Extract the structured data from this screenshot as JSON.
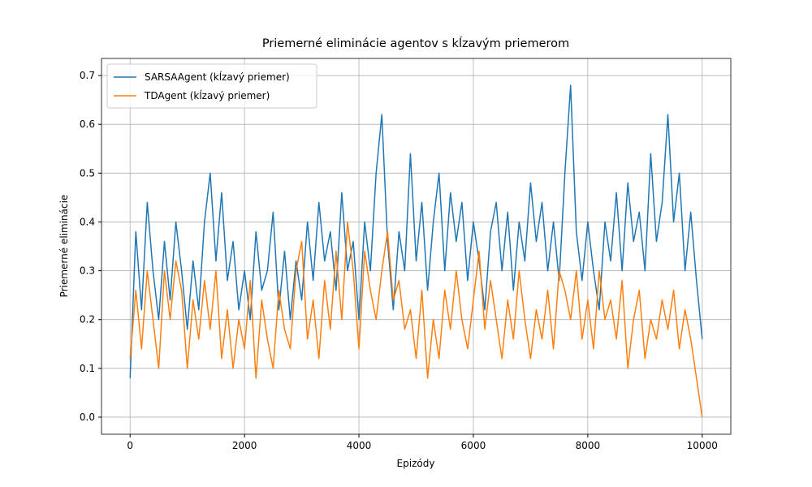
{
  "chart_data": {
    "type": "line",
    "title": "Priemerné eliminácie agentov s kĺzavým priemerom",
    "x_label": "Epizódy",
    "y_label": "Priemerné eliminácie",
    "x": [
      0,
      100,
      200,
      300,
      400,
      500,
      600,
      700,
      800,
      900,
      1000,
      1100,
      1200,
      1300,
      1400,
      1500,
      1600,
      1700,
      1800,
      1900,
      2000,
      2100,
      2200,
      2300,
      2400,
      2500,
      2600,
      2700,
      2800,
      2900,
      3000,
      3100,
      3200,
      3300,
      3400,
      3500,
      3600,
      3700,
      3800,
      3900,
      4000,
      4100,
      4200,
      4300,
      4400,
      4500,
      4600,
      4700,
      4800,
      4900,
      5000,
      5100,
      5200,
      5300,
      5400,
      5500,
      5600,
      5700,
      5800,
      5900,
      6000,
      6100,
      6200,
      6300,
      6400,
      6500,
      6600,
      6700,
      6800,
      6900,
      7000,
      7100,
      7200,
      7300,
      7400,
      7500,
      7600,
      7700,
      7800,
      7900,
      8000,
      8100,
      8200,
      8300,
      8400,
      8500,
      8600,
      8700,
      8800,
      8900,
      9000,
      9100,
      9200,
      9300,
      9400,
      9500,
      9600,
      9700,
      9800,
      9900,
      10000
    ],
    "series": [
      {
        "name": "SARSAAgent (kĺzavý priemer)",
        "color": "#1f77b4",
        "values": [
          0.08,
          0.38,
          0.22,
          0.44,
          0.3,
          0.2,
          0.36,
          0.24,
          0.4,
          0.3,
          0.18,
          0.32,
          0.22,
          0.4,
          0.5,
          0.32,
          0.46,
          0.28,
          0.36,
          0.22,
          0.3,
          0.2,
          0.38,
          0.26,
          0.3,
          0.42,
          0.22,
          0.34,
          0.2,
          0.32,
          0.24,
          0.4,
          0.28,
          0.44,
          0.32,
          0.38,
          0.26,
          0.46,
          0.3,
          0.36,
          0.2,
          0.4,
          0.3,
          0.5,
          0.62,
          0.36,
          0.22,
          0.38,
          0.3,
          0.54,
          0.32,
          0.44,
          0.26,
          0.4,
          0.5,
          0.3,
          0.46,
          0.36,
          0.44,
          0.28,
          0.4,
          0.32,
          0.22,
          0.38,
          0.44,
          0.3,
          0.42,
          0.26,
          0.4,
          0.32,
          0.48,
          0.36,
          0.44,
          0.3,
          0.4,
          0.28,
          0.5,
          0.68,
          0.38,
          0.28,
          0.4,
          0.3,
          0.22,
          0.4,
          0.32,
          0.46,
          0.3,
          0.48,
          0.36,
          0.42,
          0.3,
          0.54,
          0.36,
          0.44,
          0.62,
          0.4,
          0.5,
          0.3,
          0.42,
          0.28,
          0.16
        ]
      },
      {
        "name": "TDAgent (kĺzavý priemer)",
        "color": "#ff7f0e",
        "values": [
          0.12,
          0.26,
          0.14,
          0.3,
          0.2,
          0.1,
          0.3,
          0.2,
          0.32,
          0.26,
          0.1,
          0.24,
          0.16,
          0.28,
          0.18,
          0.3,
          0.12,
          0.22,
          0.1,
          0.2,
          0.14,
          0.28,
          0.08,
          0.24,
          0.16,
          0.1,
          0.26,
          0.18,
          0.14,
          0.3,
          0.36,
          0.16,
          0.24,
          0.12,
          0.28,
          0.18,
          0.34,
          0.2,
          0.4,
          0.3,
          0.14,
          0.34,
          0.26,
          0.2,
          0.3,
          0.38,
          0.24,
          0.28,
          0.18,
          0.22,
          0.12,
          0.26,
          0.08,
          0.2,
          0.12,
          0.26,
          0.18,
          0.3,
          0.2,
          0.14,
          0.24,
          0.34,
          0.18,
          0.28,
          0.2,
          0.12,
          0.24,
          0.16,
          0.3,
          0.2,
          0.12,
          0.22,
          0.16,
          0.26,
          0.14,
          0.3,
          0.26,
          0.2,
          0.3,
          0.16,
          0.24,
          0.14,
          0.3,
          0.2,
          0.24,
          0.16,
          0.28,
          0.1,
          0.2,
          0.26,
          0.12,
          0.2,
          0.16,
          0.24,
          0.18,
          0.26,
          0.14,
          0.22,
          0.16,
          0.08,
          0.0
        ]
      }
    ],
    "xlim": [
      -500,
      10500
    ],
    "ylim": [
      -0.035,
      0.735
    ],
    "xticks": [
      0,
      2000,
      4000,
      6000,
      8000,
      10000
    ],
    "yticks": [
      {
        "value": 0,
        "label": "0.0"
      },
      0.1,
      0.2,
      0.3,
      0.4,
      0.5,
      0.6,
      0.7
    ],
    "grid": true,
    "legend": "upper-left"
  }
}
